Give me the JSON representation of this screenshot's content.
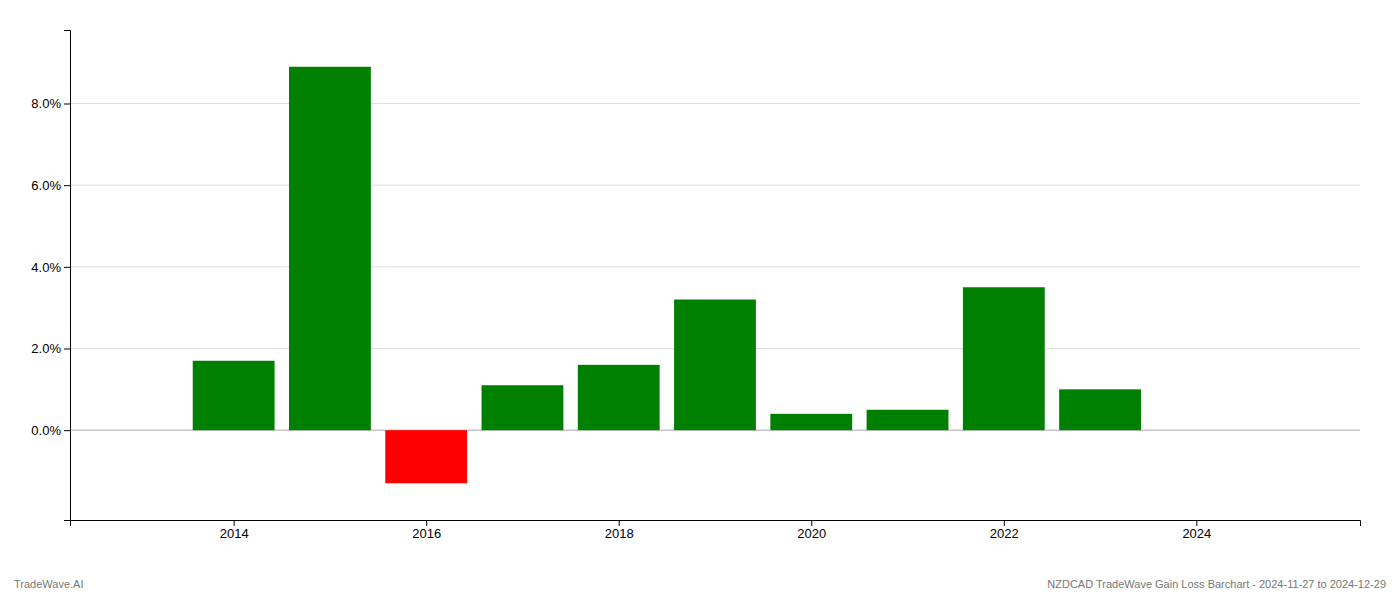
{
  "chart_data": {
    "type": "bar",
    "x": [
      2014,
      2015,
      2016,
      2017,
      2018,
      2019,
      2020,
      2021,
      2022,
      2023
    ],
    "values": [
      0.017,
      0.089,
      -0.013,
      0.011,
      0.016,
      0.032,
      0.004,
      0.005,
      0.035,
      0.01
    ],
    "colors": [
      "#008000",
      "#008000",
      "#ff0000",
      "#008000",
      "#008000",
      "#008000",
      "#008000",
      "#008000",
      "#008000",
      "#008000"
    ],
    "xlim": [
      2012.3,
      2025.7
    ],
    "ylim": [
      -0.022,
      0.098
    ],
    "xticks": [
      2014,
      2016,
      2018,
      2020,
      2022,
      2024
    ],
    "yticks": [
      {
        "value": 0.0,
        "label": "0.0%"
      },
      {
        "value": 0.02,
        "label": "2.0%"
      },
      {
        "value": 0.04,
        "label": "4.0%"
      },
      {
        "value": 0.06,
        "label": "6.0%"
      },
      {
        "value": 0.08,
        "label": "8.0%"
      }
    ],
    "grid": true,
    "annotations": [
      "TradeWave.AI",
      "NZDCAD TradeWave Gain Loss Barchart - 2024-11-27 to 2024-12-29"
    ]
  }
}
